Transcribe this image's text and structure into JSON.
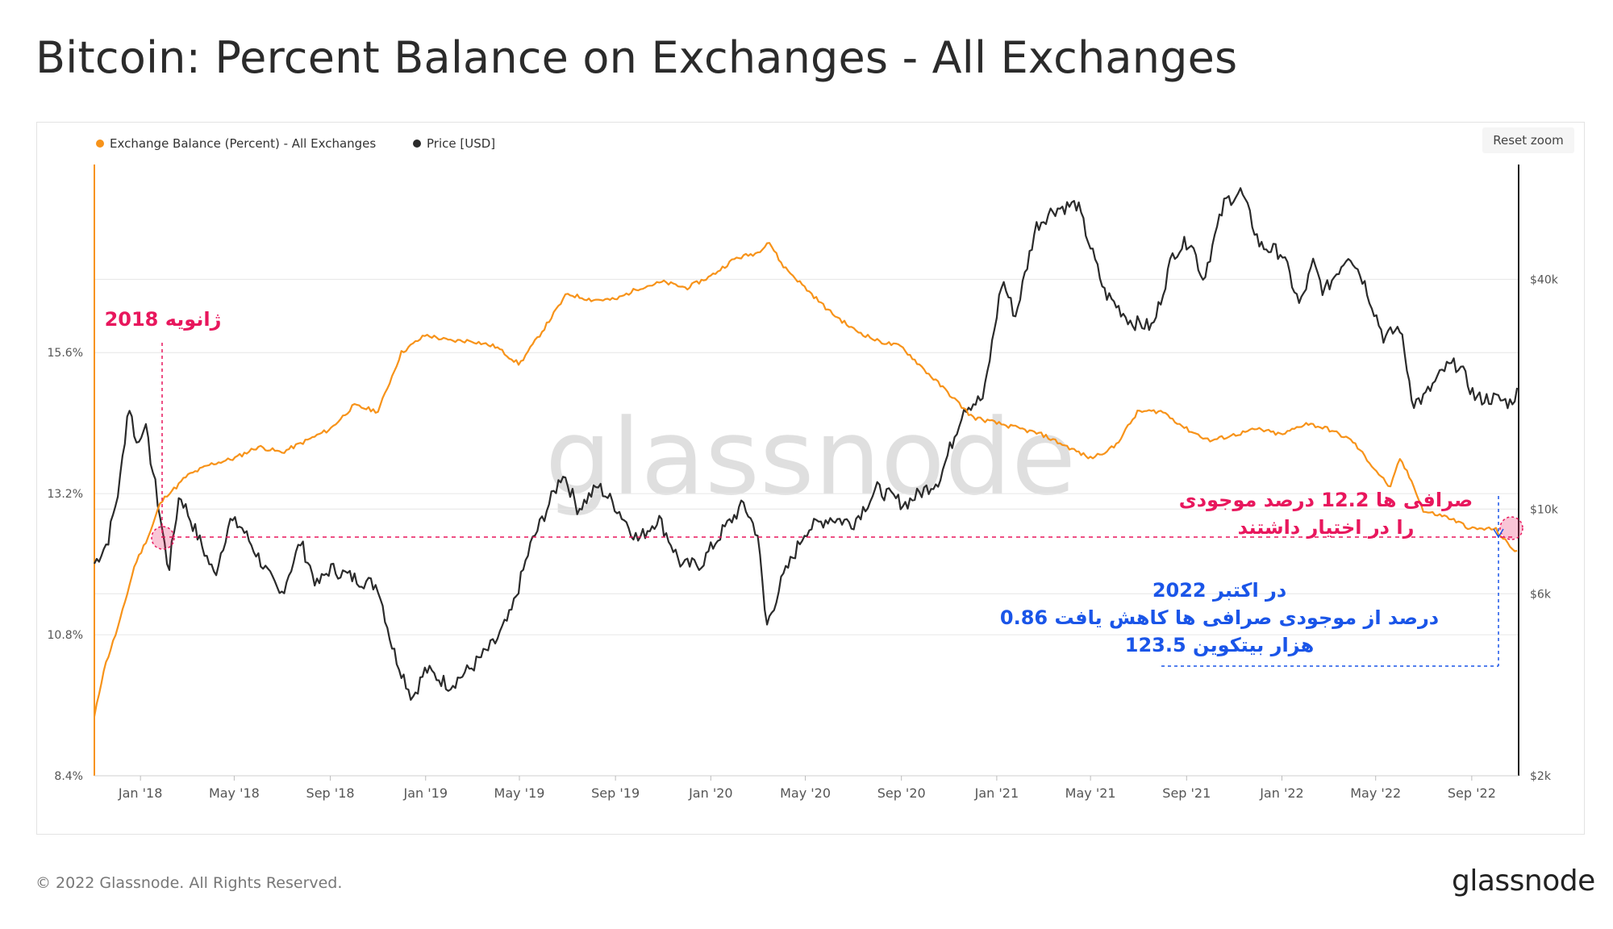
{
  "page": {
    "title": "Bitcoin: Percent Balance on Exchanges - All Exchanges",
    "copyright": "© 2022 Glassnode. All Rights Reserved.",
    "logo_text": "glassnode",
    "watermark_text": "glassnode",
    "reset_zoom_label": "Reset zoom"
  },
  "colors": {
    "balance": "#f7931a",
    "price": "#2b2b2b",
    "pink": "#e8175d",
    "blue": "#1a55e8",
    "grid": "#e6e6e6",
    "axis_text": "#555555"
  },
  "chart_data": {
    "type": "line",
    "x_range": [
      "2017-11-03",
      "2022-10-31"
    ],
    "x_ticks": [
      {
        "date": "2018-01-01",
        "label": "Jan '18"
      },
      {
        "date": "2018-05-01",
        "label": "May '18"
      },
      {
        "date": "2018-09-01",
        "label": "Sep '18"
      },
      {
        "date": "2019-01-01",
        "label": "Jan '19"
      },
      {
        "date": "2019-05-01",
        "label": "May '19"
      },
      {
        "date": "2019-09-01",
        "label": "Sep '19"
      },
      {
        "date": "2020-01-01",
        "label": "Jan '20"
      },
      {
        "date": "2020-05-01",
        "label": "May '20"
      },
      {
        "date": "2020-09-01",
        "label": "Sep '20"
      },
      {
        "date": "2021-01-01",
        "label": "Jan '21"
      },
      {
        "date": "2021-05-01",
        "label": "May '21"
      },
      {
        "date": "2021-09-01",
        "label": "Sep '21"
      },
      {
        "date": "2022-01-01",
        "label": "Jan '22"
      },
      {
        "date": "2022-05-01",
        "label": "May '22"
      },
      {
        "date": "2022-09-01",
        "label": "Sep '22"
      }
    ],
    "y_left": {
      "scale": "linear",
      "range": [
        8.4,
        18.8
      ],
      "ticks": [
        {
          "value": 8.4,
          "label": "8.4%"
        },
        {
          "value": 10.8,
          "label": "10.8%"
        },
        {
          "value": 13.2,
          "label": "13.2%"
        },
        {
          "value": 15.6,
          "label": "15.6%"
        }
      ]
    },
    "y_right": {
      "scale": "log",
      "range": [
        2000,
        80000
      ],
      "ticks": [
        {
          "value": 2000,
          "label": "$2k"
        },
        {
          "value": 6000,
          "label": "$6k"
        },
        {
          "value": 10000,
          "label": "$10k"
        },
        {
          "value": 40000,
          "label": "$40k"
        }
      ]
    },
    "grid": true,
    "legend_position": "top-left",
    "series": [
      {
        "name": "Exchange Balance (Percent) - All Exchanges",
        "axis": "left",
        "points": [
          [
            "2017-11-03",
            9.4
          ],
          [
            "2017-11-15",
            10.2
          ],
          [
            "2017-11-25",
            10.6
          ],
          [
            "2017-12-05",
            11.0
          ],
          [
            "2017-12-15",
            11.5
          ],
          [
            "2017-12-25",
            12.0
          ],
          [
            "2018-01-05",
            12.3
          ],
          [
            "2018-01-15",
            12.6
          ],
          [
            "2018-01-25",
            13.0
          ],
          [
            "2018-02-05",
            13.2
          ],
          [
            "2018-02-15",
            13.3
          ],
          [
            "2018-03-01",
            13.5
          ],
          [
            "2018-04-01",
            13.7
          ],
          [
            "2018-05-01",
            13.8
          ],
          [
            "2018-06-01",
            14.0
          ],
          [
            "2018-07-01",
            13.9
          ],
          [
            "2018-08-01",
            14.1
          ],
          [
            "2018-09-01",
            14.3
          ],
          [
            "2018-10-01",
            14.7
          ],
          [
            "2018-11-01",
            14.6
          ],
          [
            "2018-12-01",
            15.6
          ],
          [
            "2019-01-01",
            15.9
          ],
          [
            "2019-02-01",
            15.8
          ],
          [
            "2019-03-01",
            15.8
          ],
          [
            "2019-04-01",
            15.7
          ],
          [
            "2019-05-01",
            15.4
          ],
          [
            "2019-06-01",
            16.0
          ],
          [
            "2019-07-01",
            16.6
          ],
          [
            "2019-08-01",
            16.5
          ],
          [
            "2019-09-01",
            16.5
          ],
          [
            "2019-10-01",
            16.7
          ],
          [
            "2019-11-01",
            16.8
          ],
          [
            "2019-12-01",
            16.7
          ],
          [
            "2020-01-01",
            16.9
          ],
          [
            "2020-02-01",
            17.2
          ],
          [
            "2020-03-01",
            17.3
          ],
          [
            "2020-03-15",
            17.5
          ],
          [
            "2020-04-01",
            17.1
          ],
          [
            "2020-05-01",
            16.7
          ],
          [
            "2020-06-01",
            16.3
          ],
          [
            "2020-07-01",
            16.0
          ],
          [
            "2020-08-01",
            15.8
          ],
          [
            "2020-09-01",
            15.7
          ],
          [
            "2020-10-01",
            15.3
          ],
          [
            "2020-11-01",
            14.9
          ],
          [
            "2020-12-01",
            14.5
          ],
          [
            "2021-01-01",
            14.4
          ],
          [
            "2021-02-01",
            14.3
          ],
          [
            "2021-03-01",
            14.2
          ],
          [
            "2021-04-01",
            14.0
          ],
          [
            "2021-05-01",
            13.8
          ],
          [
            "2021-06-01",
            14.0
          ],
          [
            "2021-07-01",
            14.6
          ],
          [
            "2021-08-01",
            14.6
          ],
          [
            "2021-09-01",
            14.3
          ],
          [
            "2021-10-01",
            14.1
          ],
          [
            "2021-11-01",
            14.2
          ],
          [
            "2021-12-01",
            14.3
          ],
          [
            "2022-01-01",
            14.2
          ],
          [
            "2022-02-01",
            14.4
          ],
          [
            "2022-03-01",
            14.3
          ],
          [
            "2022-04-01",
            14.1
          ],
          [
            "2022-05-01",
            13.6
          ],
          [
            "2022-05-20",
            13.3
          ],
          [
            "2022-06-01",
            13.8
          ],
          [
            "2022-06-20",
            13.3
          ],
          [
            "2022-07-01",
            12.9
          ],
          [
            "2022-08-01",
            12.8
          ],
          [
            "2022-09-01",
            12.6
          ],
          [
            "2022-10-01",
            12.6
          ],
          [
            "2022-10-20",
            12.3
          ],
          [
            "2022-10-31",
            12.2
          ]
        ]
      },
      {
        "name": "Price [USD]",
        "axis": "right",
        "points": [
          [
            "2017-11-03",
            7200
          ],
          [
            "2017-11-20",
            8200
          ],
          [
            "2017-12-05",
            11500
          ],
          [
            "2017-12-17",
            19000
          ],
          [
            "2017-12-28",
            14500
          ],
          [
            "2018-01-06",
            17000
          ],
          [
            "2018-01-20",
            11500
          ],
          [
            "2018-02-06",
            6900
          ],
          [
            "2018-02-20",
            11000
          ],
          [
            "2018-03-10",
            9000
          ],
          [
            "2018-04-06",
            6700
          ],
          [
            "2018-04-25",
            9300
          ],
          [
            "2018-05-10",
            9000
          ],
          [
            "2018-06-01",
            7500
          ],
          [
            "2018-06-29",
            5900
          ],
          [
            "2018-07-25",
            8200
          ],
          [
            "2018-08-15",
            6300
          ],
          [
            "2018-09-01",
            7000
          ],
          [
            "2018-10-01",
            6600
          ],
          [
            "2018-11-01",
            6300
          ],
          [
            "2018-11-20",
            4300
          ],
          [
            "2018-12-15",
            3200
          ],
          [
            "2019-01-01",
            3800
          ],
          [
            "2019-02-01",
            3450
          ],
          [
            "2019-03-01",
            3850
          ],
          [
            "2019-04-01",
            4500
          ],
          [
            "2019-04-20",
            5300
          ],
          [
            "2019-05-15",
            8000
          ],
          [
            "2019-06-26",
            12500
          ],
          [
            "2019-07-15",
            10000
          ],
          [
            "2019-08-10",
            11500
          ],
          [
            "2019-09-01",
            10200
          ],
          [
            "2019-09-30",
            8300
          ],
          [
            "2019-10-26",
            9500
          ],
          [
            "2019-11-25",
            7100
          ],
          [
            "2019-12-20",
            7200
          ],
          [
            "2020-01-15",
            8700
          ],
          [
            "2020-02-12",
            10300
          ],
          [
            "2020-03-01",
            8600
          ],
          [
            "2020-03-12",
            4900
          ],
          [
            "2020-04-01",
            6500
          ],
          [
            "2020-05-01",
            8800
          ],
          [
            "2020-06-01",
            9500
          ],
          [
            "2020-07-01",
            9200
          ],
          [
            "2020-08-01",
            11300
          ],
          [
            "2020-09-05",
            10300
          ],
          [
            "2020-10-20",
            12000
          ],
          [
            "2020-11-20",
            18500
          ],
          [
            "2020-12-15",
            19500
          ],
          [
            "2021-01-08",
            40000
          ],
          [
            "2021-01-25",
            32000
          ],
          [
            "2021-02-20",
            55000
          ],
          [
            "2021-03-14",
            61000
          ],
          [
            "2021-04-14",
            63000
          ],
          [
            "2021-05-19",
            37000
          ],
          [
            "2021-06-22",
            31000
          ],
          [
            "2021-07-20",
            30000
          ],
          [
            "2021-08-15",
            47000
          ],
          [
            "2021-09-06",
            51000
          ],
          [
            "2021-09-22",
            40000
          ],
          [
            "2021-10-20",
            64000
          ],
          [
            "2021-11-10",
            68000
          ],
          [
            "2021-12-04",
            49000
          ],
          [
            "2022-01-01",
            47000
          ],
          [
            "2022-01-24",
            34000
          ],
          [
            "2022-02-10",
            44000
          ],
          [
            "2022-02-24",
            37000
          ],
          [
            "2022-03-28",
            47000
          ],
          [
            "2022-04-15",
            40000
          ],
          [
            "2022-05-12",
            28000
          ],
          [
            "2022-06-01",
            30000
          ],
          [
            "2022-06-18",
            19000
          ],
          [
            "2022-07-01",
            19500
          ],
          [
            "2022-07-30",
            23500
          ],
          [
            "2022-08-15",
            24000
          ],
          [
            "2022-09-06",
            19500
          ],
          [
            "2022-09-30",
            19500
          ],
          [
            "2022-10-20",
            19000
          ],
          [
            "2022-10-31",
            20500
          ]
        ]
      }
    ],
    "annotations": [
      {
        "id": "jan2018",
        "text": "ژانویه 2018",
        "color": "pink"
      },
      {
        "id": "now",
        "lines": [
          "صرافی ها 12.2 درصد موجودی",
          "را در اختیار داشتند"
        ],
        "color": "pink"
      },
      {
        "id": "drop",
        "lines": [
          "در اکتبر 2022",
          "0.86 درصد از موجودی صرافی ها کاهش یافت",
          "123.5 هزار بیتکوین"
        ],
        "color": "blue"
      }
    ]
  }
}
